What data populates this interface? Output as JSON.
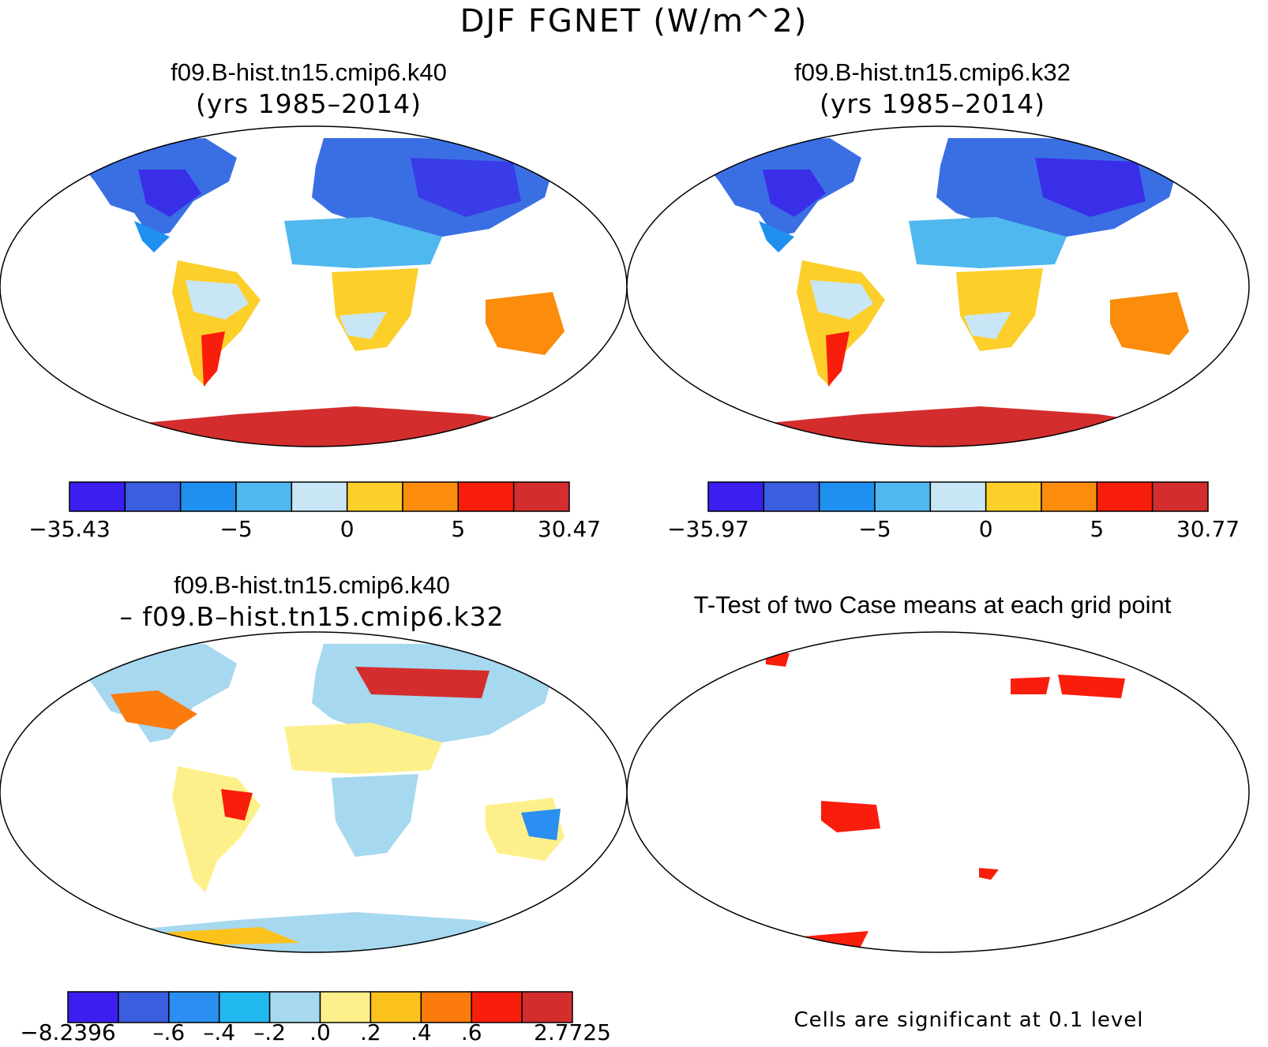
{
  "figure": {
    "title": "DJF FGNET (W/m^2)"
  },
  "panels": {
    "p1": {
      "title": "f09.B-hist.tn15.cmip6.k40",
      "subtitle": "(yrs 1985–2014)"
    },
    "p2": {
      "title": "f09.B-hist.tn15.cmip6.k32",
      "subtitle": "(yrs 1985–2014)"
    },
    "p3": {
      "title": "f09.B-hist.tn15.cmip6.k40",
      "subtitle": "– f09.B–hist.tn15.cmip6.k32"
    },
    "p4": {
      "title": "T-Test of two Case means at each grid point",
      "note": "Cells are significant at 0.1 level"
    }
  },
  "colorbars": {
    "cb1": {
      "colors": [
        "#3a1ff0",
        "#3a5ee0",
        "#1f8ff0",
        "#4fb8ee",
        "#c8e6f5",
        "#fccf2a",
        "#fb8c0c",
        "#f91d0c",
        "#d42d2d"
      ],
      "labels": [
        "−35.43",
        "−5",
        "0",
        "5",
        "30.47"
      ],
      "label_at_boundary": [
        0,
        3,
        5,
        7,
        9
      ]
    },
    "cb2": {
      "colors": [
        "#3a1ff0",
        "#3a5ee0",
        "#1f8ff0",
        "#4fb8ee",
        "#c8e6f5",
        "#fccf2a",
        "#fb8c0c",
        "#f91d0c",
        "#d42d2d"
      ],
      "labels": [
        "−35.97",
        "−5",
        "0",
        "5",
        "30.77"
      ],
      "label_at_boundary": [
        0,
        3,
        5,
        7,
        9
      ]
    },
    "cb3": {
      "colors": [
        "#3a1ff0",
        "#3a5ee0",
        "#2a8ff0",
        "#22b8f0",
        "#a6d8f0",
        "#fdf08a",
        "#fcc21c",
        "#fb7c0c",
        "#f91d0c",
        "#d42d2d"
      ],
      "labels": [
        "−8.2396",
        "–.6",
        "–.4",
        "–.2",
        ".0",
        ".2",
        ".4",
        ".6",
        "2.7725"
      ],
      "label_at_boundary": [
        0,
        2,
        3,
        4,
        5,
        6,
        7,
        8,
        10
      ]
    }
  }
}
